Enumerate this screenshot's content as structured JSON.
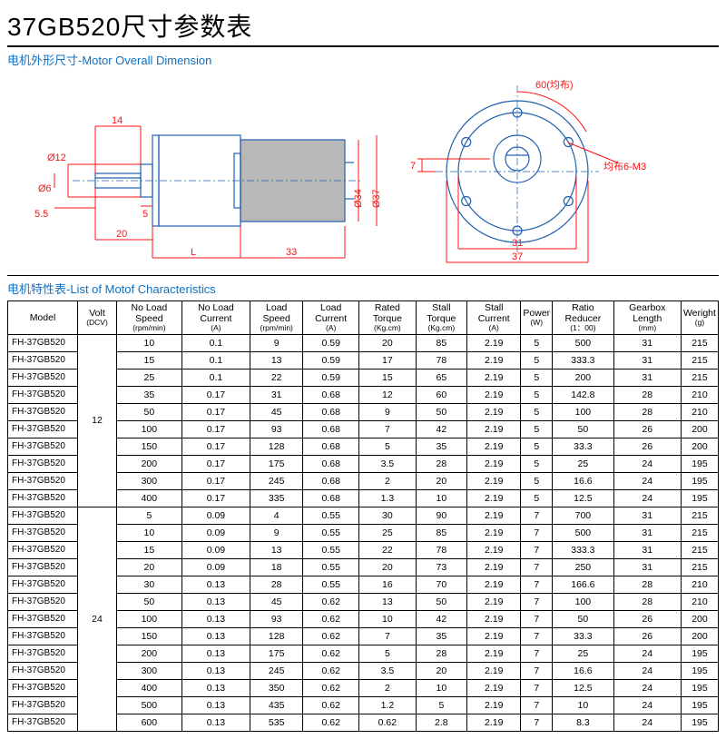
{
  "title": "37GB520尺寸参数表",
  "section_dimension": "电机外形尺寸-Motor Overall Dimension",
  "section_characteristics": "电机特性表-List of Motof Characteristics",
  "drawing": {
    "dim_color": "#ff1010",
    "body_color": "#2060b0",
    "fill_color": "#b8b8b8",
    "side": {
      "d14": "14",
      "d12": "Ø12",
      "d6": "Ø6",
      "d5_5": "5.5",
      "d5": "5",
      "d20": "20",
      "dL": "L",
      "d33": "33",
      "d34": "Ø34",
      "d37": "Ø37"
    },
    "front": {
      "d60": "60(均布)",
      "d7": "7",
      "d31": "31",
      "d37": "37",
      "m3": "均布6-M3"
    }
  },
  "columns": [
    {
      "top": "Model",
      "sub": ""
    },
    {
      "top": "Volt",
      "sub": "(DCV)"
    },
    {
      "top": "No Load Speed",
      "sub": "(rpm/min)"
    },
    {
      "top": "No Load Current",
      "sub": "(A)"
    },
    {
      "top": "Load Speed",
      "sub": "(rpm/min)"
    },
    {
      "top": "Load Current",
      "sub": "(A)"
    },
    {
      "top": "Rated Torque",
      "sub": "(Kg.cm)"
    },
    {
      "top": "Stall Torque",
      "sub": "(Kg.cm)"
    },
    {
      "top": "Stall Current",
      "sub": "(A)"
    },
    {
      "top": "Power",
      "sub": "(W)"
    },
    {
      "top": "Ratio Reducer",
      "sub": "(1：00)"
    },
    {
      "top": "Gearbox Length",
      "sub": "(mm)"
    },
    {
      "top": "Weright",
      "sub": "(g)"
    }
  ],
  "groups": [
    {
      "volt": "12",
      "rows": [
        [
          "FH-37GB520",
          "10",
          "0.1",
          "9",
          "0.59",
          "20",
          "85",
          "2.19",
          "5",
          "500",
          "31",
          "215"
        ],
        [
          "FH-37GB520",
          "15",
          "0.1",
          "13",
          "0.59",
          "17",
          "78",
          "2.19",
          "5",
          "333.3",
          "31",
          "215"
        ],
        [
          "FH-37GB520",
          "25",
          "0.1",
          "22",
          "0.59",
          "15",
          "65",
          "2.19",
          "5",
          "200",
          "31",
          "215"
        ],
        [
          "FH-37GB520",
          "35",
          "0.17",
          "31",
          "0.68",
          "12",
          "60",
          "2.19",
          "5",
          "142.8",
          "28",
          "210"
        ],
        [
          "FH-37GB520",
          "50",
          "0.17",
          "45",
          "0.68",
          "9",
          "50",
          "2.19",
          "5",
          "100",
          "28",
          "210"
        ],
        [
          "FH-37GB520",
          "100",
          "0.17",
          "93",
          "0.68",
          "7",
          "42",
          "2.19",
          "5",
          "50",
          "26",
          "200"
        ],
        [
          "FH-37GB520",
          "150",
          "0.17",
          "128",
          "0.68",
          "5",
          "35",
          "2.19",
          "5",
          "33.3",
          "26",
          "200"
        ],
        [
          "FH-37GB520",
          "200",
          "0.17",
          "175",
          "0.68",
          "3.5",
          "28",
          "2.19",
          "5",
          "25",
          "24",
          "195"
        ],
        [
          "FH-37GB520",
          "300",
          "0.17",
          "245",
          "0.68",
          "2",
          "20",
          "2.19",
          "5",
          "16.6",
          "24",
          "195"
        ],
        [
          "FH-37GB520",
          "400",
          "0.17",
          "335",
          "0.68",
          "1.3",
          "10",
          "2.19",
          "5",
          "12.5",
          "24",
          "195"
        ]
      ]
    },
    {
      "volt": "24",
      "rows": [
        [
          "FH-37GB520",
          "5",
          "0.09",
          "4",
          "0.55",
          "30",
          "90",
          "2.19",
          "7",
          "700",
          "31",
          "215"
        ],
        [
          "FH-37GB520",
          "10",
          "0.09",
          "9",
          "0.55",
          "25",
          "85",
          "2.19",
          "7",
          "500",
          "31",
          "215"
        ],
        [
          "FH-37GB520",
          "15",
          "0.09",
          "13",
          "0.55",
          "22",
          "78",
          "2.19",
          "7",
          "333.3",
          "31",
          "215"
        ],
        [
          "FH-37GB520",
          "20",
          "0.09",
          "18",
          "0.55",
          "20",
          "73",
          "2.19",
          "7",
          "250",
          "31",
          "215"
        ],
        [
          "FH-37GB520",
          "30",
          "0.13",
          "28",
          "0.55",
          "16",
          "70",
          "2.19",
          "7",
          "166.6",
          "28",
          "210"
        ],
        [
          "FH-37GB520",
          "50",
          "0.13",
          "45",
          "0.62",
          "13",
          "50",
          "2.19",
          "7",
          "100",
          "28",
          "210"
        ],
        [
          "FH-37GB520",
          "100",
          "0.13",
          "93",
          "0.62",
          "10",
          "42",
          "2.19",
          "7",
          "50",
          "26",
          "200"
        ],
        [
          "FH-37GB520",
          "150",
          "0.13",
          "128",
          "0.62",
          "7",
          "35",
          "2.19",
          "7",
          "33.3",
          "26",
          "200"
        ],
        [
          "FH-37GB520",
          "200",
          "0.13",
          "175",
          "0.62",
          "5",
          "28",
          "2.19",
          "7",
          "25",
          "24",
          "195"
        ],
        [
          "FH-37GB520",
          "300",
          "0.13",
          "245",
          "0.62",
          "3.5",
          "20",
          "2.19",
          "7",
          "16.6",
          "24",
          "195"
        ],
        [
          "FH-37GB520",
          "400",
          "0.13",
          "350",
          "0.62",
          "2",
          "10",
          "2.19",
          "7",
          "12.5",
          "24",
          "195"
        ],
        [
          "FH-37GB520",
          "500",
          "0.13",
          "435",
          "0.62",
          "1.2",
          "5",
          "2.19",
          "7",
          "10",
          "24",
          "195"
        ],
        [
          "FH-37GB520",
          "600",
          "0.13",
          "535",
          "0.62",
          "0.62",
          "2.8",
          "2.19",
          "7",
          "8.3",
          "24",
          "195"
        ]
      ]
    }
  ]
}
